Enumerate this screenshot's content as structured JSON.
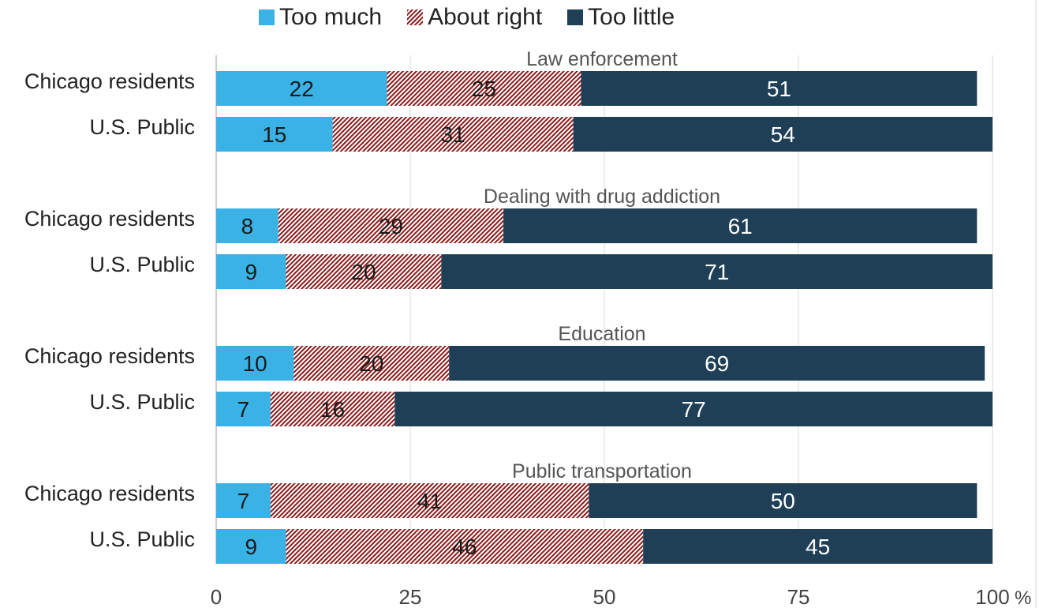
{
  "chart_data": {
    "type": "bar",
    "orientation": "horizontal",
    "stacked": true,
    "legend_position": "top",
    "colors": {
      "too_much": "#3ab2e6",
      "about_right": "#8b1a1a",
      "too_little": "#1e3f56"
    },
    "x_ticks": [
      "0",
      "25",
      "50",
      "75",
      "100"
    ],
    "x_unit": "%",
    "xlim": [
      0,
      100
    ],
    "legend": [
      "Too much",
      "About right",
      "Too little"
    ],
    "groups": [
      {
        "title": "Law enforcement",
        "rows": [
          {
            "label": "Chicago residents",
            "values": [
              22,
              25,
              51
            ]
          },
          {
            "label": "U.S. Public",
            "values": [
              15,
              31,
              54
            ]
          }
        ]
      },
      {
        "title": "Dealing with drug addiction",
        "rows": [
          {
            "label": "Chicago residents",
            "values": [
              8,
              29,
              61
            ]
          },
          {
            "label": "U.S. Public",
            "values": [
              9,
              20,
              71
            ]
          }
        ]
      },
      {
        "title": "Education",
        "rows": [
          {
            "label": "Chicago residents",
            "values": [
              10,
              20,
              69
            ]
          },
          {
            "label": "U.S. Public",
            "values": [
              7,
              16,
              77
            ]
          }
        ]
      },
      {
        "title": "Public transportation",
        "rows": [
          {
            "label": "Chicago residents",
            "values": [
              7,
              41,
              50
            ]
          },
          {
            "label": "U.S. Public",
            "values": [
              9,
              46,
              45
            ]
          }
        ]
      }
    ]
  }
}
